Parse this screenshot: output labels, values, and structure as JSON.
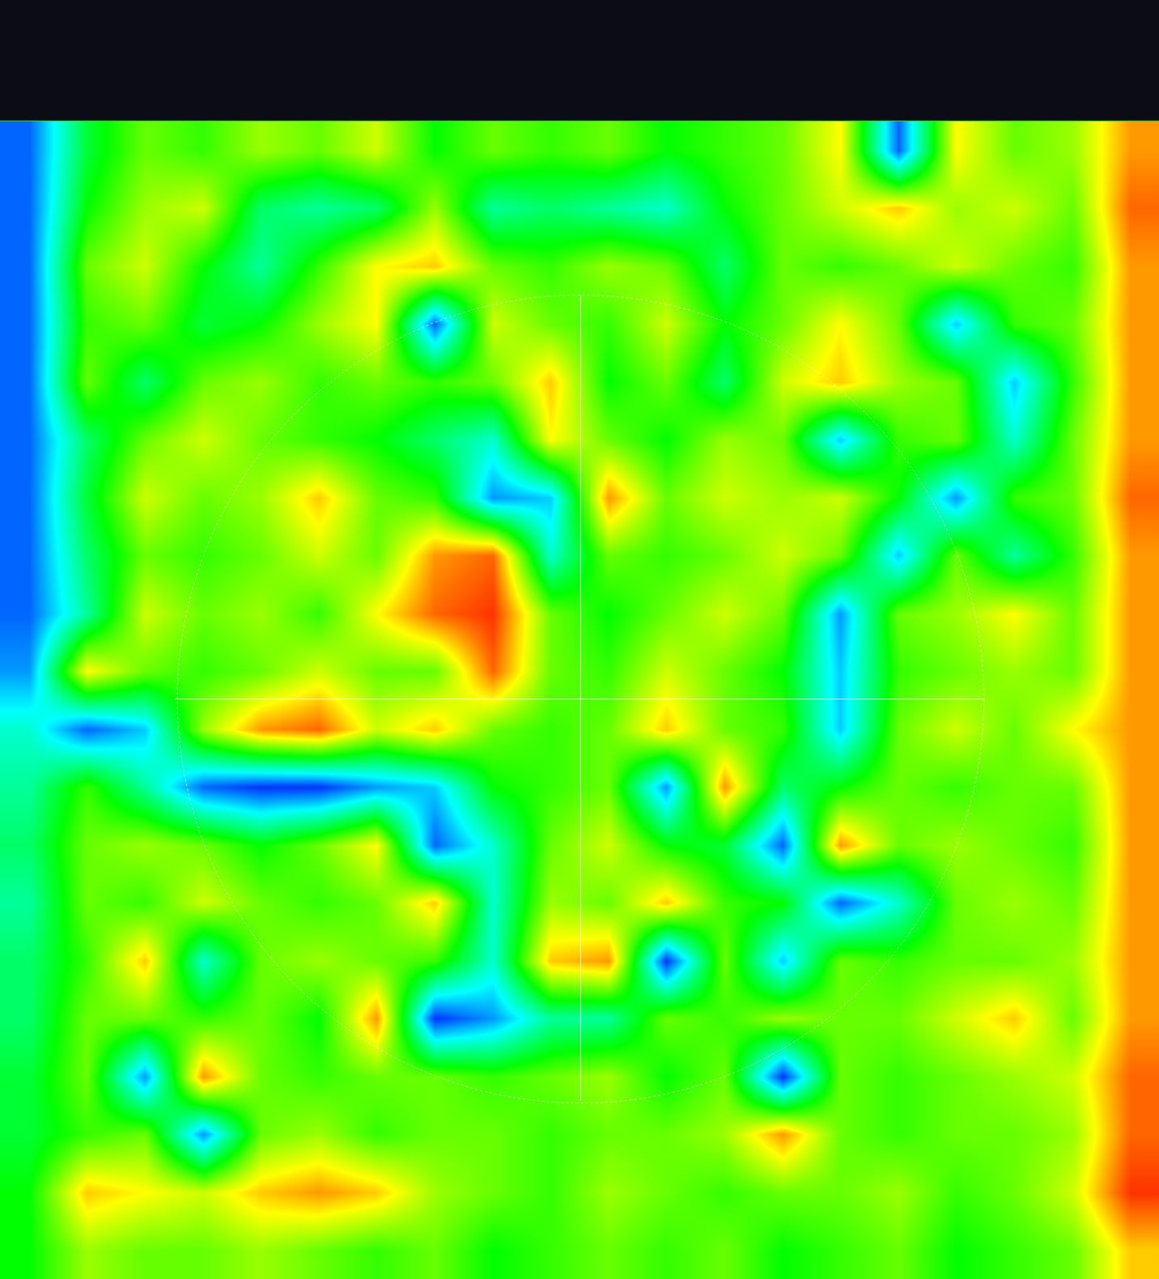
{
  "chart_data": {
    "type": "heatmap",
    "tick_labels": false,
    "grid": false,
    "xlim": [
      -0.5,
      19.5
    ],
    "ylim": [
      19.5,
      -0.5
    ],
    "zlim": [
      0,
      1
    ],
    "cells": [
      [
        0.1,
        0.45,
        0.6,
        0.55,
        0.65,
        0.6,
        0.7,
        0.5,
        0.6,
        0.55,
        0.6,
        0.5,
        0.55,
        0.6,
        0.75,
        0.1,
        0.75,
        0.6,
        0.65,
        0.85
      ],
      [
        0.1,
        0.5,
        0.65,
        0.7,
        0.4,
        0.35,
        0.4,
        0.65,
        0.35,
        0.4,
        0.35,
        0.3,
        0.5,
        0.6,
        0.7,
        0.8,
        0.65,
        0.7,
        0.6,
        0.9
      ],
      [
        0.1,
        0.6,
        0.7,
        0.5,
        0.35,
        0.55,
        0.75,
        0.8,
        0.6,
        0.55,
        0.65,
        0.6,
        0.4,
        0.6,
        0.55,
        0.6,
        0.7,
        0.6,
        0.55,
        0.85
      ],
      [
        0.1,
        0.55,
        0.6,
        0.45,
        0.5,
        0.65,
        0.75,
        0.1,
        0.7,
        0.6,
        0.55,
        0.7,
        0.5,
        0.6,
        0.75,
        0.6,
        0.2,
        0.55,
        0.6,
        0.85
      ],
      [
        0.1,
        0.6,
        0.4,
        0.6,
        0.65,
        0.55,
        0.6,
        0.55,
        0.6,
        0.8,
        0.5,
        0.6,
        0.4,
        0.7,
        0.8,
        0.65,
        0.6,
        0.2,
        0.55,
        0.85
      ],
      [
        0.1,
        0.4,
        0.6,
        0.7,
        0.6,
        0.55,
        0.5,
        0.4,
        0.3,
        0.75,
        0.6,
        0.5,
        0.65,
        0.6,
        0.2,
        0.55,
        0.6,
        0.3,
        0.6,
        0.85
      ],
      [
        0.1,
        0.45,
        0.7,
        0.6,
        0.65,
        0.8,
        0.6,
        0.55,
        0.15,
        0.2,
        0.85,
        0.6,
        0.7,
        0.65,
        0.7,
        0.5,
        0.15,
        0.55,
        0.6,
        0.9
      ],
      [
        0.1,
        0.4,
        0.6,
        0.55,
        0.6,
        0.7,
        0.6,
        0.85,
        0.9,
        0.3,
        0.6,
        0.55,
        0.6,
        0.7,
        0.6,
        0.2,
        0.6,
        0.35,
        0.55,
        0.85
      ],
      [
        0.1,
        0.35,
        0.7,
        0.6,
        0.65,
        0.55,
        0.75,
        0.9,
        0.95,
        0.6,
        0.5,
        0.6,
        0.7,
        0.6,
        0.15,
        0.6,
        0.65,
        0.75,
        0.6,
        0.85
      ],
      [
        0.15,
        0.75,
        0.6,
        0.55,
        0.6,
        0.7,
        0.6,
        0.6,
        0.9,
        0.6,
        0.55,
        0.7,
        0.6,
        0.5,
        0.2,
        0.55,
        0.6,
        0.65,
        0.6,
        0.85
      ],
      [
        0.3,
        0.1,
        0.2,
        0.65,
        0.85,
        0.9,
        0.7,
        0.8,
        0.6,
        0.55,
        0.6,
        0.8,
        0.6,
        0.55,
        0.2,
        0.6,
        0.7,
        0.6,
        0.75,
        0.85
      ],
      [
        0.35,
        0.55,
        0.35,
        0.1,
        0.05,
        0.05,
        0.15,
        0.2,
        0.5,
        0.55,
        0.6,
        0.15,
        0.85,
        0.4,
        0.5,
        0.6,
        0.55,
        0.6,
        0.6,
        0.85
      ],
      [
        0.4,
        0.6,
        0.65,
        0.6,
        0.5,
        0.6,
        0.75,
        0.1,
        0.3,
        0.6,
        0.7,
        0.5,
        0.45,
        0.1,
        0.85,
        0.6,
        0.65,
        0.6,
        0.55,
        0.85
      ],
      [
        0.35,
        0.6,
        0.55,
        0.7,
        0.6,
        0.55,
        0.6,
        0.8,
        0.3,
        0.65,
        0.6,
        0.8,
        0.55,
        0.5,
        0.1,
        0.3,
        0.6,
        0.65,
        0.6,
        0.85
      ],
      [
        0.4,
        0.55,
        0.8,
        0.3,
        0.6,
        0.65,
        0.6,
        0.55,
        0.3,
        0.8,
        0.85,
        0.05,
        0.6,
        0.2,
        0.6,
        0.55,
        0.6,
        0.6,
        0.65,
        0.85
      ],
      [
        0.4,
        0.6,
        0.6,
        0.55,
        0.6,
        0.5,
        0.85,
        0.05,
        0.15,
        0.35,
        0.35,
        0.6,
        0.55,
        0.65,
        0.6,
        0.6,
        0.7,
        0.8,
        0.6,
        0.85
      ],
      [
        0.45,
        0.6,
        0.15,
        0.85,
        0.6,
        0.55,
        0.6,
        0.6,
        0.55,
        0.6,
        0.65,
        0.5,
        0.6,
        0.05,
        0.6,
        0.55,
        0.6,
        0.65,
        0.7,
        0.9
      ],
      [
        0.45,
        0.55,
        0.6,
        0.15,
        0.6,
        0.65,
        0.55,
        0.6,
        0.6,
        0.55,
        0.6,
        0.6,
        0.65,
        0.85,
        0.6,
        0.55,
        0.6,
        0.6,
        0.65,
        0.9
      ],
      [
        0.5,
        0.8,
        0.75,
        0.7,
        0.8,
        0.85,
        0.8,
        0.65,
        0.6,
        0.55,
        0.65,
        0.6,
        0.55,
        0.6,
        0.6,
        0.65,
        0.55,
        0.6,
        0.7,
        0.95
      ],
      [
        0.5,
        0.65,
        0.6,
        0.6,
        0.65,
        0.6,
        0.55,
        0.6,
        0.5,
        0.55,
        0.6,
        0.55,
        0.6,
        0.5,
        0.55,
        0.6,
        0.5,
        0.55,
        0.6,
        0.8
      ]
    ]
  }
}
